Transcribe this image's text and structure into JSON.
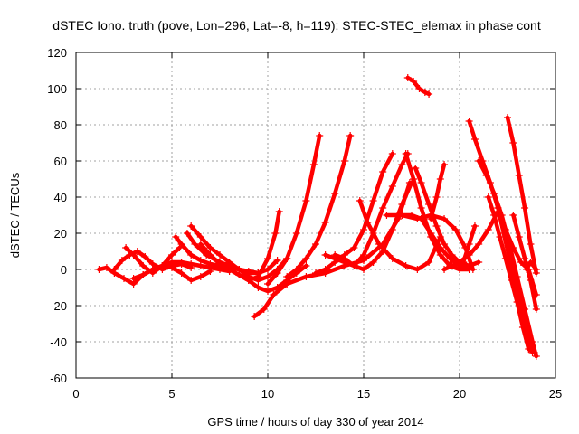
{
  "chart_data": {
    "type": "scatter",
    "title": "dSTEC Iono. truth (pove, Lon=296, Lat=-8, h=119): STEC-STEC_elemax in phase cont",
    "xlabel": "GPS time / hours of day 330 of year 2014",
    "ylabel": "dSTEC  / TECUs",
    "xlim": [
      0,
      25
    ],
    "ylim": [
      -60,
      120
    ],
    "xticks": [
      0,
      5,
      10,
      15,
      20,
      25
    ],
    "yticks": [
      -60,
      -40,
      -20,
      0,
      20,
      40,
      60,
      80,
      100,
      120
    ],
    "grid": true,
    "marker": "+",
    "color": "#ff0000",
    "series": [
      {
        "x": [
          1.2,
          1.6,
          2.0,
          2.5,
          3.0,
          3.5,
          4.0,
          4.5,
          5.0,
          5.5,
          6.0,
          6.5,
          7.0
        ],
        "y": [
          0,
          1,
          -2,
          -5,
          -8,
          -3,
          0,
          2,
          1,
          -2,
          -6,
          -4,
          -1
        ]
      },
      {
        "x": [
          2.0,
          2.4,
          2.8,
          3.2,
          3.6,
          4.0,
          4.5,
          5.0,
          5.5,
          6.0
        ],
        "y": [
          0,
          5,
          8,
          10,
          7,
          3,
          0,
          2,
          3,
          1
        ]
      },
      {
        "x": [
          2.6,
          3.0,
          3.5,
          4.0,
          4.5,
          5.0,
          5.4
        ],
        "y": [
          12,
          8,
          2,
          -2,
          2,
          8,
          12
        ]
      },
      {
        "x": [
          3.0,
          3.5,
          4.0,
          4.5,
          5.0,
          5.5,
          6.0,
          6.5,
          7.0,
          7.5,
          8.0
        ],
        "y": [
          -5,
          -3,
          0,
          2,
          4,
          4,
          3,
          2,
          1,
          0,
          -1
        ]
      },
      {
        "x": [
          5.2,
          5.5,
          6.0,
          6.5,
          7.0,
          7.5,
          8.0,
          8.5,
          9.0,
          9.5
        ],
        "y": [
          18,
          14,
          8,
          5,
          3,
          2,
          1,
          0,
          -1,
          -2
        ]
      },
      {
        "x": [
          5.8,
          6.2,
          6.8,
          7.5,
          8.0,
          8.5,
          9.0,
          9.5,
          10.0,
          10.5
        ],
        "y": [
          20,
          14,
          8,
          4,
          2,
          0,
          -2,
          -2,
          0,
          5
        ]
      },
      {
        "x": [
          6.0,
          6.5,
          7.0,
          7.5,
          8.0,
          8.5,
          9.0,
          9.5,
          10.0,
          10.5,
          11.0
        ],
        "y": [
          24,
          18,
          12,
          8,
          4,
          0,
          -4,
          -6,
          -4,
          0,
          6
        ]
      },
      {
        "x": [
          6.5,
          7.0,
          7.5,
          8.0,
          8.5,
          9.0,
          9.5,
          10.0,
          10.5,
          11.0,
          11.5,
          12.0
        ],
        "y": [
          14,
          8,
          3,
          0,
          -3,
          -6,
          -10,
          -12,
          -10,
          -6,
          -2,
          2
        ]
      },
      {
        "x": [
          8.0,
          8.5,
          9.0,
          9.5,
          10.0,
          10.4,
          10.6
        ],
        "y": [
          0,
          -3,
          -6,
          -4,
          6,
          20,
          32
        ]
      },
      {
        "x": [
          9.3,
          9.8,
          10.3,
          11.0,
          12.0,
          13.0,
          14.0,
          15.0,
          16.0,
          16.8,
          17.4
        ],
        "y": [
          -26,
          -22,
          -14,
          -8,
          -4,
          -2,
          2,
          5,
          14,
          28,
          48
        ]
      },
      {
        "x": [
          10.0,
          10.5,
          11.0,
          11.5,
          12.0,
          12.4,
          12.7
        ],
        "y": [
          -8,
          -2,
          6,
          20,
          38,
          58,
          74
        ]
      },
      {
        "x": [
          11.0,
          11.5,
          12.0,
          12.5,
          13.0,
          13.5,
          14.0,
          14.3
        ],
        "y": [
          -4,
          0,
          6,
          14,
          26,
          42,
          60,
          74
        ]
      },
      {
        "x": [
          12.5,
          13.0,
          13.5,
          14.0,
          14.5,
          15.0,
          15.5,
          16.0,
          16.5
        ],
        "y": [
          -2,
          0,
          4,
          8,
          12,
          22,
          38,
          54,
          64
        ]
      },
      {
        "x": [
          13.0,
          13.5,
          14.0,
          14.5,
          15.0,
          15.5,
          16.0,
          16.5,
          17.0,
          17.3
        ],
        "y": [
          8,
          6,
          4,
          2,
          8,
          20,
          34,
          46,
          58,
          64
        ]
      },
      {
        "x": [
          13.5,
          14.0,
          14.5,
          15.0,
          15.5,
          16.0,
          16.5,
          17.0,
          17.5
        ],
        "y": [
          8,
          6,
          2,
          0,
          4,
          10,
          22,
          36,
          48
        ]
      },
      {
        "x": [
          14.8,
          15.2,
          15.8,
          16.5,
          17.2,
          17.8,
          18.4,
          19.0
        ],
        "y": [
          38,
          26,
          14,
          6,
          2,
          0,
          4,
          18
        ]
      },
      {
        "x": [
          16.2,
          17.0,
          17.8,
          18.5,
          19.2,
          19.8,
          20.3,
          20.7
        ],
        "y": [
          30,
          30,
          28,
          30,
          28,
          22,
          12,
          0
        ]
      },
      {
        "x": [
          16.8,
          17.5,
          18.0,
          18.5,
          19.0,
          19.5,
          20.0,
          20.5
        ],
        "y": [
          30,
          30,
          28,
          20,
          12,
          6,
          2,
          0
        ]
      },
      {
        "x": [
          17.2,
          17.6,
          18.0,
          18.5,
          19.0,
          19.5,
          20.0,
          20.5
        ],
        "y": [
          64,
          50,
          34,
          18,
          8,
          2,
          0,
          0
        ]
      },
      {
        "x": [
          17.7,
          18.0,
          18.4,
          18.8,
          19.2,
          19.6,
          20.0,
          20.5,
          21.0
        ],
        "y": [
          56,
          48,
          36,
          24,
          14,
          8,
          4,
          2,
          4
        ]
      },
      {
        "x": [
          17.3,
          17.6,
          17.9,
          18.2,
          18.4
        ],
        "y": [
          106,
          104,
          100,
          98,
          97
        ]
      },
      {
        "x": [
          18.5,
          18.8,
          19.0,
          19.2
        ],
        "y": [
          28,
          40,
          50,
          58
        ]
      },
      {
        "x": [
          19.2,
          19.6,
          20.0,
          20.5,
          21.0,
          21.5,
          22.0
        ],
        "y": [
          0,
          2,
          4,
          8,
          14,
          22,
          32
        ]
      },
      {
        "x": [
          20.2,
          20.5,
          20.8
        ],
        "y": [
          4,
          14,
          24
        ]
      },
      {
        "x": [
          20.5,
          20.8,
          21.2,
          21.6,
          22.0,
          22.3,
          22.6,
          23.0,
          23.4,
          23.8
        ],
        "y": [
          82,
          72,
          60,
          48,
          34,
          20,
          6,
          -10,
          -30,
          -46
        ]
      },
      {
        "x": [
          21.0,
          21.4,
          21.8,
          22.2,
          22.6,
          23.0,
          23.4,
          23.8,
          24.0
        ],
        "y": [
          60,
          52,
          42,
          30,
          14,
          -4,
          -22,
          -40,
          -48
        ]
      },
      {
        "x": [
          21.5,
          21.8,
          22.1,
          22.4,
          22.7,
          23.0,
          23.3,
          23.6,
          23.9
        ],
        "y": [
          40,
          30,
          18,
          6,
          -6,
          -18,
          -32,
          -44,
          -46
        ]
      },
      {
        "x": [
          22.0,
          22.4,
          22.8,
          23.2,
          23.6,
          24.0
        ],
        "y": [
          34,
          22,
          12,
          4,
          0,
          -14
        ]
      },
      {
        "x": [
          22.5,
          22.8,
          23.1,
          23.4,
          23.7,
          24.0
        ],
        "y": [
          84,
          70,
          52,
          34,
          14,
          -2
        ]
      },
      {
        "x": [
          22.8,
          23.1,
          23.4,
          23.7,
          24.0
        ],
        "y": [
          30,
          18,
          6,
          -6,
          -22
        ]
      },
      {
        "x": [
          23.5,
          23.7,
          24.0
        ],
        "y": [
          0,
          4,
          0
        ]
      }
    ]
  }
}
